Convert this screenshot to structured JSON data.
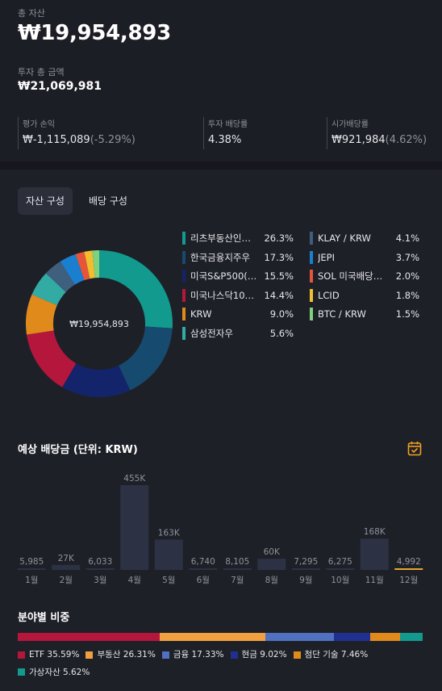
{
  "summary": {
    "total_label": "총 자산",
    "total_value": "₩19,954,893",
    "invest_label": "투자 총 금액",
    "invest_value": "₩21,069,981",
    "stats": [
      {
        "label": "평가 손익",
        "value": "₩-1,115,089",
        "sub": "(-5.29%)"
      },
      {
        "label": "투자 배당률",
        "value": "4.38%",
        "sub": ""
      },
      {
        "label": "시가배당률",
        "value": "₩921,984",
        "sub": "(4.62%)"
      }
    ]
  },
  "tabs": [
    {
      "label": "자산 구성",
      "active": true
    },
    {
      "label": "배당 구성",
      "active": false
    }
  ],
  "donut_center": "₩19,954,893",
  "holdings": [
    {
      "name": "리츠부동산인…",
      "pct": "26.3%",
      "value": 26.3,
      "color": "#129a8f"
    },
    {
      "name": "한국금융지주우",
      "pct": "17.3%",
      "value": 17.3,
      "color": "#164a6e"
    },
    {
      "name": "미국S&P500(…",
      "pct": "15.5%",
      "value": 15.5,
      "color": "#14246a"
    },
    {
      "name": "미국나스닥10…",
      "pct": "14.4%",
      "value": 14.4,
      "color": "#b5163c"
    },
    {
      "name": "KRW",
      "pct": "9.0%",
      "value": 9.0,
      "color": "#e08a1c"
    },
    {
      "name": "삼성전자우",
      "pct": "5.6%",
      "value": 5.6,
      "color": "#33aba5"
    },
    {
      "name": "KLAY / KRW",
      "pct": "4.1%",
      "value": 4.1,
      "color": "#3e5f7d"
    },
    {
      "name": "JEPI",
      "pct": "3.7%",
      "value": 3.7,
      "color": "#1b7fd0"
    },
    {
      "name": "SOL 미국배당…",
      "pct": "2.0%",
      "value": 2.0,
      "color": "#e4553a"
    },
    {
      "name": "LCID",
      "pct": "1.8%",
      "value": 1.8,
      "color": "#f0be2e"
    },
    {
      "name": "BTC / KRW",
      "pct": "1.5%",
      "value": 1.5,
      "color": "#7fd07f"
    }
  ],
  "dividends": {
    "title": "예상 배당금 (단위: KRW)",
    "icon": "calendar-check-icon",
    "chart_data": {
      "type": "bar",
      "categories": [
        "1월",
        "2월",
        "3월",
        "4월",
        "5월",
        "6월",
        "7월",
        "8월",
        "9월",
        "10월",
        "11월",
        "12월"
      ],
      "values": [
        5985,
        27000,
        6033,
        455000,
        163000,
        6740,
        8105,
        60000,
        7295,
        6275,
        168000,
        4992
      ],
      "labels": [
        "5,985",
        "27K",
        "6,033",
        "455K",
        "163K",
        "6,740",
        "8,105",
        "60K",
        "7,295",
        "6,275",
        "168K",
        "4,992"
      ],
      "highlight_index": 11,
      "ylim": [
        0,
        455000
      ]
    }
  },
  "sectors": {
    "title": "분야별 비중",
    "items": [
      {
        "name": "ETF",
        "pct": "35.59%",
        "value": 35.59,
        "color": "#b5163c"
      },
      {
        "name": "부동산",
        "pct": "26.31%",
        "value": 26.31,
        "color": "#f0a040"
      },
      {
        "name": "금융",
        "pct": "17.33%",
        "value": 17.33,
        "color": "#5170c0"
      },
      {
        "name": "현금",
        "pct": "9.02%",
        "value": 9.02,
        "color": "#203090"
      },
      {
        "name": "첨단 기술",
        "pct": "7.46%",
        "value": 7.46,
        "color": "#e08a1c"
      },
      {
        "name": "가상자산",
        "pct": "5.62%",
        "value": 5.62,
        "color": "#129a8f"
      }
    ]
  }
}
